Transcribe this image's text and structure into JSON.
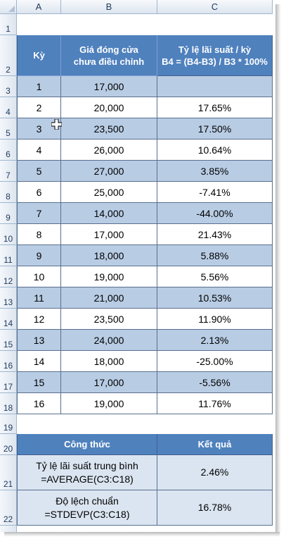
{
  "columns": [
    "A",
    "B",
    "C"
  ],
  "row_numbers": [
    "1",
    "2",
    "3",
    "4",
    "5",
    "6",
    "7",
    "8",
    "9",
    "10",
    "11",
    "12",
    "13",
    "14",
    "15",
    "16",
    "17",
    "18",
    "19",
    "20",
    "21",
    "22"
  ],
  "table": {
    "headers": {
      "period": "Kỳ",
      "price": "Giá đóng cửa chưa điều chỉnh",
      "rate_line1": "Tỷ lệ lãi suất / kỳ",
      "rate_line2": "B4 = (B4-B3) / B3 * 100%"
    },
    "rows": [
      {
        "period": "1",
        "price": "17,000",
        "rate": ""
      },
      {
        "period": "2",
        "price": "20,000",
        "rate": "17.65%"
      },
      {
        "period": "3",
        "price": "23,500",
        "rate": "17.50%"
      },
      {
        "period": "4",
        "price": "26,000",
        "rate": "10.64%"
      },
      {
        "period": "5",
        "price": "27,000",
        "rate": "3.85%"
      },
      {
        "period": "6",
        "price": "25,000",
        "rate": "-7.41%"
      },
      {
        "period": "7",
        "price": "14,000",
        "rate": "-44.00%"
      },
      {
        "period": "8",
        "price": "17,000",
        "rate": "21.43%"
      },
      {
        "period": "9",
        "price": "18,000",
        "rate": "5.88%"
      },
      {
        "period": "10",
        "price": "19,000",
        "rate": "5.56%"
      },
      {
        "period": "11",
        "price": "21,000",
        "rate": "10.53%"
      },
      {
        "period": "12",
        "price": "23,500",
        "rate": "11.90%"
      },
      {
        "period": "13",
        "price": "24,000",
        "rate": "2.13%"
      },
      {
        "period": "14",
        "price": "18,000",
        "rate": "-25.00%"
      },
      {
        "period": "15",
        "price": "17,000",
        "rate": "-5.56%"
      },
      {
        "period": "16",
        "price": "19,000",
        "rate": "11.76%"
      }
    ]
  },
  "summary": {
    "header_formula": "Công thức",
    "header_result": "Kết quả",
    "rows": [
      {
        "line1": "Tỷ lệ lãi suất trung bình",
        "line2": "=AVERAGE(C3:C18)",
        "result": "2.46%"
      },
      {
        "line1": "Độ lệch chuẩn",
        "line2": "=STDEVP(C3:C18)",
        "result": "16.78%"
      }
    ]
  },
  "cursor": {
    "icon": "cell-select-cross-icon"
  },
  "colors": {
    "header_blue": "#4f81bd",
    "band_blue": "#b8cce4",
    "summary_light": "#dbe5f1"
  }
}
